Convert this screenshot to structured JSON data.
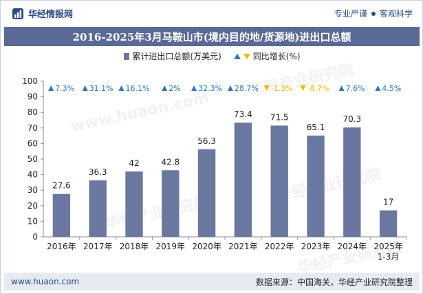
{
  "header": {
    "brand_name": "华经情报网",
    "tagline_left": "专业严谨",
    "tagline_right": "客观科学"
  },
  "title": "2016-2025年3月马鞍山市(境内目的地/货源地)进出口总额",
  "legend": {
    "bar_series": "累计进出口总额(万美元)",
    "change_series": "同比增长(%)"
  },
  "footer": {
    "site": "www.huaon.com",
    "source": "数据来源：中国海关，华经产业研究院整理"
  },
  "watermarks": [
    "华经产业研究院",
    "www.huaon.com"
  ],
  "colors": {
    "bar": "#6a789f",
    "up": "#2a77c8",
    "down": "#f0b800",
    "title_bg": "#5a6a96"
  },
  "chart_data": {
    "type": "bar",
    "categories": [
      "2016年",
      "2017年",
      "2018年",
      "2019年",
      "2020年",
      "2021年",
      "2022年",
      "2023年",
      "2024年",
      "2025年\n1-3月"
    ],
    "series": [
      {
        "name": "累计进出口总额(万美元)",
        "values": [
          27.6,
          36.3,
          42,
          42.8,
          56.3,
          73.4,
          71.5,
          65.1,
          70.3,
          17
        ]
      }
    ],
    "yoy_change": [
      "7.3%",
      "31.1%",
      "16.1%",
      "2%",
      "32.3%",
      "28.7%",
      "-1.3%",
      "-8.7%",
      "7.6%",
      "4.5%"
    ],
    "yoy_direction": [
      "up",
      "up",
      "up",
      "up",
      "up",
      "up",
      "down",
      "down",
      "up",
      "up"
    ],
    "ylim": [
      0,
      100
    ],
    "yticks": [
      0,
      10,
      20,
      30,
      40,
      50,
      60,
      70,
      80,
      90,
      100
    ],
    "grid": false
  }
}
